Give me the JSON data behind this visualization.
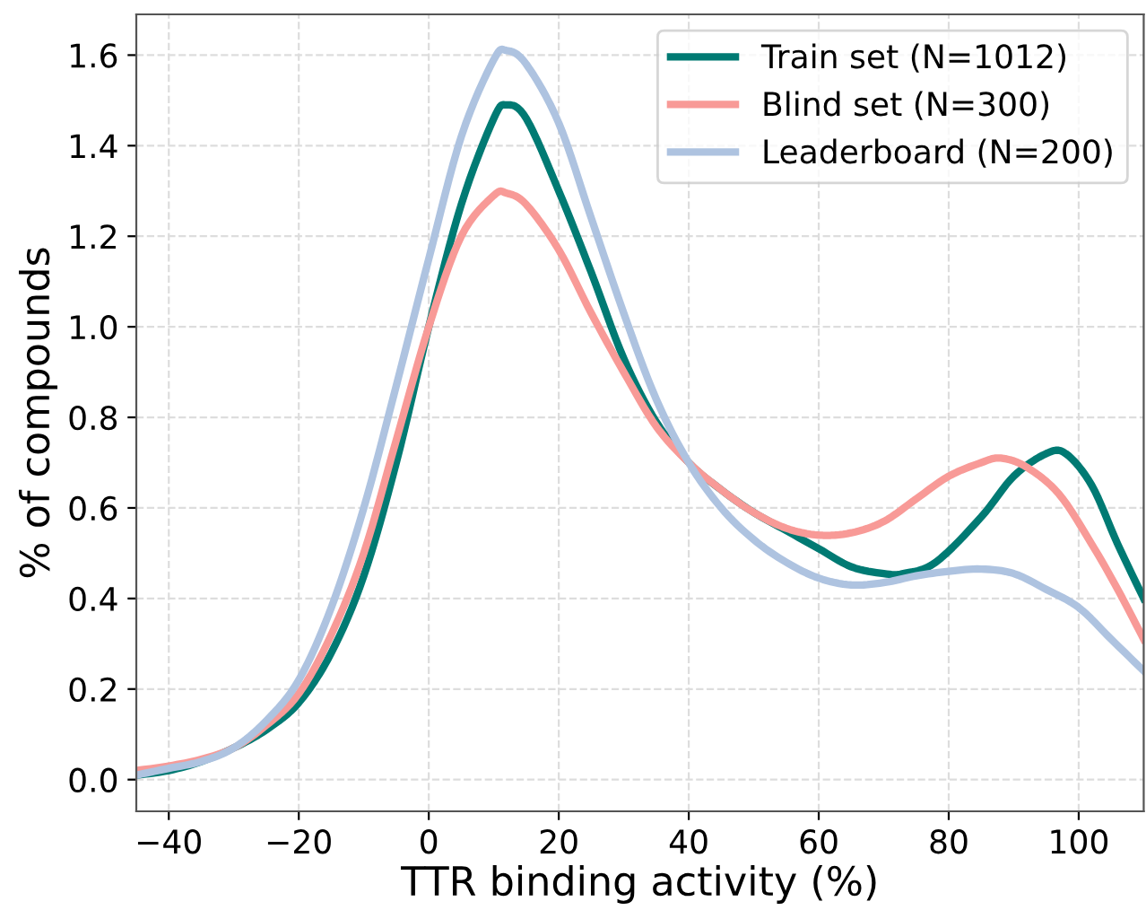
{
  "chart_data": {
    "type": "line",
    "xlabel": "TTR binding activity (%)",
    "ylabel": "% of compounds",
    "xlim": [
      -45,
      110
    ],
    "ylim": [
      -0.07,
      1.69
    ],
    "xticks": [
      {
        "value": -40,
        "label": "−40"
      },
      {
        "value": -20,
        "label": "−20"
      },
      0,
      20,
      40,
      60,
      80,
      100
    ],
    "yticks": [
      {
        "value": 0,
        "label": "0.0"
      },
      0.2,
      0.4,
      0.6,
      0.8,
      {
        "value": 1,
        "label": "1.0"
      },
      1.2,
      1.4,
      1.6
    ],
    "grid": true,
    "legend": "top right",
    "line_style": "solid",
    "marker": "none",
    "series": [
      {
        "name": "Train set (N=1012)",
        "color": "#007a73",
        "x": [
          -45,
          -40,
          -35,
          -30,
          -25,
          -20,
          -15,
          -10,
          -5,
          0,
          5,
          10,
          12,
          15,
          20,
          25,
          30,
          35,
          40,
          45,
          50,
          55,
          60,
          65,
          70,
          73,
          78,
          85,
          90,
          95,
          98,
          102,
          106,
          110
        ],
        "values": [
          0.01,
          0.02,
          0.04,
          0.07,
          0.11,
          0.17,
          0.28,
          0.45,
          0.7,
          1.0,
          1.27,
          1.46,
          1.49,
          1.46,
          1.3,
          1.12,
          0.93,
          0.79,
          0.7,
          0.64,
          0.59,
          0.55,
          0.51,
          0.47,
          0.455,
          0.455,
          0.48,
          0.58,
          0.67,
          0.72,
          0.72,
          0.65,
          0.52,
          0.4
        ]
      },
      {
        "name": "Blind set (N=300)",
        "color": "#f89a97",
        "x": [
          -45,
          -40,
          -35,
          -30,
          -25,
          -20,
          -15,
          -10,
          -5,
          0,
          5,
          10,
          12,
          15,
          20,
          25,
          30,
          35,
          40,
          45,
          50,
          55,
          60,
          65,
          70,
          75,
          80,
          85,
          88,
          92,
          97,
          102,
          106,
          110
        ],
        "values": [
          0.02,
          0.03,
          0.045,
          0.07,
          0.12,
          0.19,
          0.32,
          0.5,
          0.75,
          1.0,
          1.2,
          1.29,
          1.295,
          1.27,
          1.17,
          1.03,
          0.9,
          0.78,
          0.7,
          0.64,
          0.59,
          0.555,
          0.54,
          0.545,
          0.57,
          0.62,
          0.67,
          0.7,
          0.71,
          0.69,
          0.63,
          0.52,
          0.42,
          0.31
        ]
      },
      {
        "name": "Leaderboard (N=200)",
        "color": "#aec3e0",
        "x": [
          -45,
          -40,
          -35,
          -30,
          -25,
          -20,
          -15,
          -10,
          -5,
          0,
          5,
          10,
          12,
          15,
          20,
          25,
          30,
          35,
          40,
          45,
          50,
          55,
          60,
          65,
          70,
          75,
          80,
          85,
          90,
          95,
          100,
          105,
          110
        ],
        "values": [
          0.01,
          0.025,
          0.04,
          0.07,
          0.13,
          0.22,
          0.38,
          0.6,
          0.87,
          1.15,
          1.42,
          1.59,
          1.61,
          1.58,
          1.45,
          1.24,
          1.03,
          0.84,
          0.7,
          0.6,
          0.53,
          0.48,
          0.445,
          0.43,
          0.435,
          0.45,
          0.46,
          0.465,
          0.455,
          0.42,
          0.38,
          0.31,
          0.24
        ]
      }
    ]
  }
}
